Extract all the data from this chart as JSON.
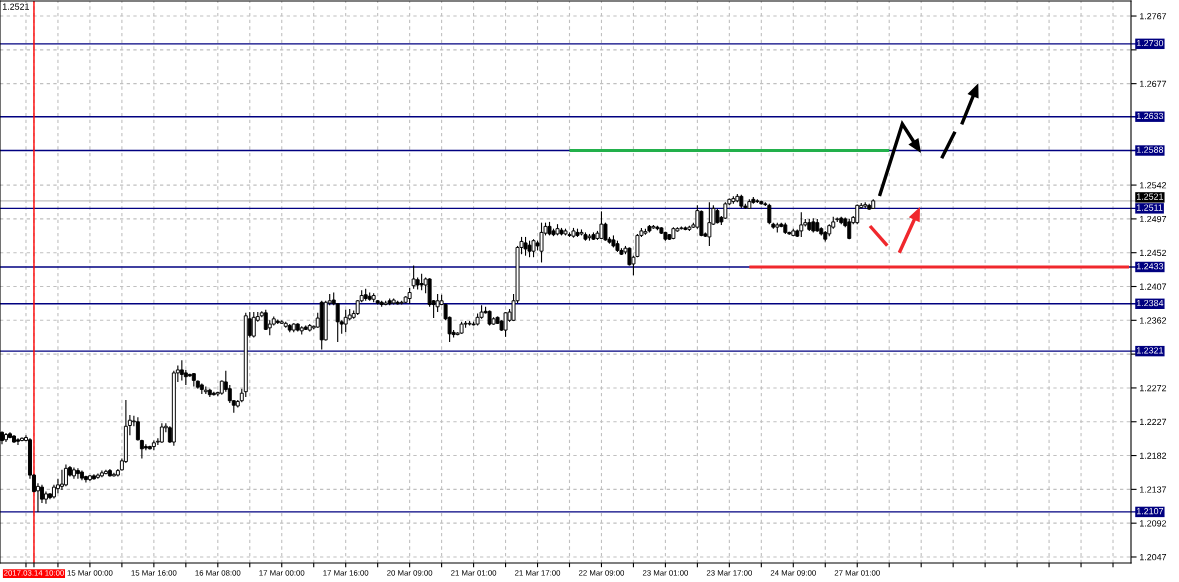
{
  "chart_data": {
    "type": "candlestick",
    "color": "#000000",
    "categories": [
      null,
      null,
      null,
      null,
      null,
      null,
      null,
      null,
      "2017.03.14 10:00",
      null,
      null,
      null,
      null,
      null,
      null,
      null,
      null,
      null,
      null,
      null,
      null,
      null,
      "15 Mar 00:00",
      null,
      null,
      null,
      null,
      null,
      null,
      null,
      null,
      null,
      null,
      null,
      null,
      null,
      null,
      null,
      "15 Mar 16:00",
      null,
      null,
      null,
      null,
      null,
      null,
      null,
      null,
      null,
      null,
      null,
      null,
      null,
      null,
      null,
      "16 Mar 08:00",
      null,
      null,
      null,
      null,
      null,
      null,
      null,
      null,
      null,
      null,
      null,
      null,
      null,
      null,
      null,
      "17 Mar 00:00",
      null,
      null,
      null,
      null,
      null,
      null,
      null,
      null,
      null,
      null,
      null,
      null,
      null,
      null,
      null,
      "17 Mar 16:00",
      null,
      null,
      null,
      null,
      null,
      null,
      null,
      null,
      null,
      null,
      null,
      null,
      null,
      null,
      null,
      "20 Mar 09:00",
      null,
      null,
      null,
      null,
      null,
      null,
      null,
      null,
      null,
      null,
      null,
      null,
      null,
      null,
      null,
      "21 Mar 01:00",
      null,
      null,
      null,
      null,
      null,
      null,
      null,
      null,
      null,
      null,
      null,
      null,
      null,
      null,
      null,
      "21 Mar 17:00",
      null,
      null,
      null,
      null,
      null,
      null,
      null,
      null,
      null,
      null,
      null,
      null,
      null,
      null,
      null,
      "22 Mar 09:00",
      null,
      null,
      null,
      null,
      null,
      null,
      null,
      null,
      null,
      null,
      null,
      null,
      null,
      null,
      null,
      "23 Mar 01:00",
      null,
      null,
      null,
      null,
      null,
      null,
      null,
      null,
      null,
      null,
      null,
      null,
      null,
      null,
      null,
      "23 Mar 17:00",
      null,
      null,
      null,
      null,
      null,
      null,
      null,
      null,
      null,
      null,
      null,
      null,
      null,
      null,
      null,
      "24 Mar 09:00",
      null,
      null,
      null,
      null,
      null,
      null,
      null,
      null,
      null,
      null,
      null,
      null,
      null,
      null,
      null,
      "27 Mar 01:00",
      null,
      null,
      null,
      null,
      null,
      null,
      null,
      null,
      null,
      null,
      null,
      null,
      null,
      null,
      null,
      null,
      null,
      null,
      null,
      null,
      null,
      null,
      null,
      null,
      null,
      null,
      null,
      null,
      null,
      null,
      null,
      null,
      null,
      null,
      null,
      null,
      null,
      null,
      null,
      null,
      null,
      null,
      null,
      null,
      null,
      null,
      null,
      null,
      null,
      null,
      null,
      null,
      null,
      null,
      null,
      null,
      null,
      null,
      null,
      null,
      null,
      null,
      null,
      null,
      null,
      null,
      null,
      null
    ],
    "ohlc": [
      [
        1.2213,
        1.2214,
        1.2197,
        1.2202
      ],
      [
        1.2203,
        1.2212,
        1.22,
        1.221
      ],
      [
        1.2211,
        1.2213,
        1.2205,
        1.2206
      ],
      [
        1.2208,
        1.2209,
        1.2199,
        1.22
      ],
      [
        1.2203,
        1.2205,
        1.2196,
        1.2201
      ],
      [
        1.2202,
        1.2206,
        1.2201,
        1.2205
      ],
      [
        1.2202,
        1.2209,
        1.2201,
        1.2206
      ],
      [
        1.2203,
        1.2205,
        1.2151,
        1.2156
      ],
      [
        1.2156,
        1.2157,
        1.2133,
        1.2134
      ],
      [
        1.2135,
        1.2145,
        1.2107,
        1.2141
      ],
      [
        1.214,
        1.2143,
        1.2119,
        1.2124
      ],
      [
        1.2124,
        1.2134,
        1.2118,
        1.2131
      ],
      [
        1.2131,
        1.2132,
        1.2124,
        1.2126
      ],
      [
        1.2127,
        1.2143,
        1.2125,
        1.214
      ],
      [
        1.2138,
        1.2151,
        1.2132,
        1.2143
      ],
      [
        1.2141,
        1.2163,
        1.2136,
        1.2144
      ],
      [
        1.2143,
        1.217,
        1.2141,
        1.2165
      ],
      [
        1.2166,
        1.2168,
        1.2154,
        1.2156
      ],
      [
        1.2155,
        1.2166,
        1.2151,
        1.2163
      ],
      [
        1.2162,
        1.2165,
        1.2151,
        1.2158
      ],
      [
        1.216,
        1.2162,
        1.2149,
        1.2152
      ],
      [
        1.2154,
        1.2155,
        1.2146,
        1.215
      ],
      [
        1.215,
        1.2156,
        1.2148,
        1.2155
      ],
      [
        1.2155,
        1.2157,
        1.215,
        1.2151
      ],
      [
        1.2153,
        1.2158,
        1.2151,
        1.2156
      ],
      [
        1.2155,
        1.2162,
        1.2153,
        1.2159
      ],
      [
        1.2158,
        1.2163,
        1.2157,
        1.2161
      ],
      [
        1.2162,
        1.2164,
        1.2154,
        1.2155
      ],
      [
        1.2155,
        1.2159,
        1.2154,
        1.2157
      ],
      [
        1.2156,
        1.2164,
        1.2154,
        1.2162
      ],
      [
        1.2163,
        1.2178,
        1.2162,
        1.2175
      ],
      [
        1.2174,
        1.2256,
        1.2172,
        1.2221
      ],
      [
        1.2222,
        1.2236,
        1.2209,
        1.2229
      ],
      [
        1.2227,
        1.2235,
        1.2221,
        1.2228
      ],
      [
        1.2227,
        1.2233,
        1.2202,
        1.2203
      ],
      [
        1.2202,
        1.2203,
        1.2178,
        1.2191
      ],
      [
        1.2194,
        1.2197,
        1.2189,
        1.2192
      ],
      [
        1.2194,
        1.2195,
        1.219,
        1.2191
      ],
      [
        1.2194,
        1.2202,
        1.2189,
        1.2199
      ],
      [
        1.22,
        1.2205,
        1.2196,
        1.2201
      ],
      [
        1.22,
        1.2225,
        1.2199,
        1.222
      ],
      [
        1.2219,
        1.2225,
        1.2213,
        1.2221
      ],
      [
        1.2219,
        1.2221,
        1.2199,
        1.22
      ],
      [
        1.22,
        1.2295,
        1.2195,
        1.2292
      ],
      [
        1.2292,
        1.2302,
        1.228,
        1.2296
      ],
      [
        1.2296,
        1.2309,
        1.2282,
        1.229
      ],
      [
        1.2292,
        1.2296,
        1.2276,
        1.2287
      ],
      [
        1.229,
        1.2291,
        1.2287,
        1.2288
      ],
      [
        1.2291,
        1.2292,
        1.2274,
        1.2282
      ],
      [
        1.2281,
        1.2282,
        1.2271,
        1.2273
      ],
      [
        1.2276,
        1.2278,
        1.2264,
        1.227
      ],
      [
        1.2267,
        1.2274,
        1.2264,
        1.2269
      ],
      [
        1.2269,
        1.2271,
        1.226,
        1.2263
      ],
      [
        1.2265,
        1.2267,
        1.2262,
        1.2263
      ],
      [
        1.2264,
        1.2267,
        1.2261,
        1.2266
      ],
      [
        1.2265,
        1.2282,
        1.2263,
        1.2281
      ],
      [
        1.228,
        1.2295,
        1.2267,
        1.227
      ],
      [
        1.2271,
        1.2276,
        1.2252,
        1.2255
      ],
      [
        1.2255,
        1.2256,
        1.2239,
        1.2249
      ],
      [
        1.2248,
        1.2256,
        1.2246,
        1.2254
      ],
      [
        1.2255,
        1.2271,
        1.2253,
        1.2265
      ],
      [
        1.2267,
        1.2372,
        1.226,
        1.2368
      ],
      [
        1.2364,
        1.2373,
        1.2339,
        1.2342
      ],
      [
        1.2341,
        1.2373,
        1.2339,
        1.2366
      ],
      [
        1.2362,
        1.2373,
        1.236,
        1.2367
      ],
      [
        1.2368,
        1.2374,
        1.2366,
        1.2372
      ],
      [
        1.2372,
        1.2376,
        1.2349,
        1.235
      ],
      [
        1.2352,
        1.2362,
        1.2342,
        1.2357
      ],
      [
        1.2357,
        1.2367,
        1.2355,
        1.2364
      ],
      [
        1.2361,
        1.2363,
        1.2357,
        1.2359
      ],
      [
        1.2358,
        1.2362,
        1.2357,
        1.236
      ],
      [
        1.2354,
        1.236,
        1.2352,
        1.2358
      ],
      [
        1.2355,
        1.2357,
        1.2346,
        1.2349
      ],
      [
        1.2349,
        1.2358,
        1.2346,
        1.2357
      ],
      [
        1.2357,
        1.2358,
        1.2347,
        1.2349
      ],
      [
        1.2348,
        1.2354,
        1.2343,
        1.2352
      ],
      [
        1.2353,
        1.2355,
        1.2349,
        1.235
      ],
      [
        1.2349,
        1.2357,
        1.2347,
        1.2355
      ],
      [
        1.2352,
        1.2355,
        1.235,
        1.2354
      ],
      [
        1.2353,
        1.2372,
        1.2352,
        1.2365
      ],
      [
        1.2386,
        1.2388,
        1.2323,
        1.2336
      ],
      [
        1.2336,
        1.2388,
        1.2335,
        1.2386
      ],
      [
        1.2385,
        1.2397,
        1.2382,
        1.2388
      ],
      [
        1.2389,
        1.2399,
        1.2382,
        1.2384
      ],
      [
        1.2384,
        1.2385,
        1.2333,
        1.236
      ],
      [
        1.236,
        1.2362,
        1.2344,
        1.2357
      ],
      [
        1.2357,
        1.2376,
        1.2346,
        1.2366
      ],
      [
        1.2364,
        1.2377,
        1.2362,
        1.2369
      ],
      [
        1.2366,
        1.2375,
        1.2364,
        1.2371
      ],
      [
        1.2371,
        1.2389,
        1.2369,
        1.2388
      ],
      [
        1.2388,
        1.2402,
        1.2386,
        1.2395
      ],
      [
        1.2396,
        1.2404,
        1.2388,
        1.2391
      ],
      [
        1.2394,
        1.2399,
        1.2388,
        1.239
      ],
      [
        1.239,
        1.2398,
        1.2386,
        1.2395
      ],
      [
        1.2388,
        1.2389,
        1.2383,
        1.2385
      ],
      [
        1.2386,
        1.2388,
        1.238,
        1.2383
      ],
      [
        1.2383,
        1.2388,
        1.2382,
        1.2385
      ],
      [
        1.2388,
        1.2391,
        1.2382,
        1.2384
      ],
      [
        1.2385,
        1.2391,
        1.2383,
        1.2389
      ],
      [
        1.2386,
        1.2388,
        1.2383,
        1.2384
      ],
      [
        1.2385,
        1.2388,
        1.2383,
        1.2386
      ],
      [
        1.2386,
        1.2394,
        1.2385,
        1.2393
      ],
      [
        1.2391,
        1.2405,
        1.2384,
        1.2399
      ],
      [
        1.2408,
        1.2435,
        1.2404,
        1.2417
      ],
      [
        1.2416,
        1.2419,
        1.2403,
        1.2409
      ],
      [
        1.2411,
        1.2424,
        1.2402,
        1.2409
      ],
      [
        1.2409,
        1.2419,
        1.2398,
        1.2417
      ],
      [
        1.2417,
        1.2418,
        1.238,
        1.2383
      ],
      [
        1.2388,
        1.2389,
        1.2365,
        1.2383
      ],
      [
        1.238,
        1.2397,
        1.2373,
        1.2388
      ],
      [
        1.2383,
        1.2396,
        1.2382,
        1.2388
      ],
      [
        1.2383,
        1.2384,
        1.2362,
        1.2364
      ],
      [
        1.2366,
        1.2367,
        1.2333,
        1.2344
      ],
      [
        1.2346,
        1.2349,
        1.2339,
        1.2343
      ],
      [
        1.2343,
        1.2346,
        1.2342,
        1.2345
      ],
      [
        1.2345,
        1.236,
        1.2344,
        1.2357
      ],
      [
        1.2357,
        1.2361,
        1.2352,
        1.2358
      ],
      [
        1.2357,
        1.2361,
        1.2355,
        1.2358
      ],
      [
        1.2357,
        1.236,
        1.2355,
        1.2356
      ],
      [
        1.2357,
        1.2371,
        1.2355,
        1.2366
      ],
      [
        1.2366,
        1.2382,
        1.2364,
        1.2373
      ],
      [
        1.2374,
        1.238,
        1.2371,
        1.2372
      ],
      [
        1.2374,
        1.2375,
        1.2355,
        1.2357
      ],
      [
        1.2357,
        1.2366,
        1.2356,
        1.2364
      ],
      [
        1.2366,
        1.2367,
        1.2357,
        1.2358
      ],
      [
        1.2361,
        1.2362,
        1.2348,
        1.2349
      ],
      [
        1.2349,
        1.2373,
        1.234,
        1.2372
      ],
      [
        1.2362,
        1.2377,
        1.236,
        1.2373
      ],
      [
        1.2362,
        1.2397,
        1.2361,
        1.2388
      ],
      [
        1.2388,
        1.2461,
        1.2385,
        1.2459
      ],
      [
        1.2459,
        1.2473,
        1.245,
        1.2467
      ],
      [
        1.2465,
        1.2473,
        1.2448,
        1.2457
      ],
      [
        1.2462,
        1.2468,
        1.2446,
        1.2454
      ],
      [
        1.2454,
        1.247,
        1.2446,
        1.2468
      ],
      [
        1.2465,
        1.2468,
        1.2455,
        1.2461
      ],
      [
        1.2454,
        1.2492,
        1.2439,
        1.2479
      ],
      [
        1.2478,
        1.2492,
        1.2475,
        1.2487
      ],
      [
        1.2487,
        1.2493,
        1.2475,
        1.2477
      ],
      [
        1.2481,
        1.2484,
        1.2474,
        1.2476
      ],
      [
        1.2477,
        1.249,
        1.2475,
        1.2484
      ],
      [
        1.2482,
        1.2485,
        1.2475,
        1.2477
      ],
      [
        1.2477,
        1.2484,
        1.2475,
        1.2481
      ],
      [
        1.2476,
        1.2479,
        1.2473,
        1.2475
      ],
      [
        1.2474,
        1.2485,
        1.2472,
        1.2481
      ],
      [
        1.2479,
        1.2484,
        1.2473,
        1.2475
      ],
      [
        1.2477,
        1.2483,
        1.2475,
        1.2479
      ],
      [
        1.2476,
        1.2479,
        1.2468,
        1.247
      ],
      [
        1.2472,
        1.2477,
        1.2468,
        1.2474
      ],
      [
        1.2476,
        1.2479,
        1.2469,
        1.247
      ],
      [
        1.2471,
        1.2481,
        1.2469,
        1.2478
      ],
      [
        1.2471,
        1.2507,
        1.247,
        1.249
      ],
      [
        1.249,
        1.2492,
        1.2468,
        1.2469
      ],
      [
        1.247,
        1.2473,
        1.2464,
        1.2466
      ],
      [
        1.2469,
        1.2475,
        1.2459,
        1.2461
      ],
      [
        1.2464,
        1.2468,
        1.2453,
        1.2455
      ],
      [
        1.2455,
        1.2458,
        1.2449,
        1.245
      ],
      [
        1.2453,
        1.2461,
        1.245,
        1.2458
      ],
      [
        1.2458,
        1.2459,
        1.2435,
        1.2436
      ],
      [
        1.2437,
        1.2448,
        1.2422,
        1.2446
      ],
      [
        1.2447,
        1.2477,
        1.2446,
        1.2475
      ],
      [
        1.2475,
        1.2485,
        1.2473,
        1.2481
      ],
      [
        1.2478,
        1.2484,
        1.2476,
        1.248
      ],
      [
        1.2487,
        1.2489,
        1.2479,
        1.2481
      ],
      [
        1.2485,
        1.2489,
        1.2484,
        1.2487
      ],
      [
        1.2486,
        1.2488,
        1.2482,
        1.2484
      ],
      [
        1.2485,
        1.2486,
        1.2477,
        1.2478
      ],
      [
        1.2479,
        1.248,
        1.2468,
        1.247
      ],
      [
        1.2476,
        1.2477,
        1.2469,
        1.247
      ],
      [
        1.2471,
        1.2486,
        1.247,
        1.2484
      ],
      [
        1.2481,
        1.2486,
        1.248,
        1.2484
      ],
      [
        1.2484,
        1.2487,
        1.2483,
        1.2485
      ],
      [
        1.2485,
        1.2487,
        1.2482,
        1.2483
      ],
      [
        1.2483,
        1.2488,
        1.2481,
        1.2486
      ],
      [
        1.2486,
        1.2492,
        1.2485,
        1.2489
      ],
      [
        1.2486,
        1.2515,
        1.2484,
        1.2508
      ],
      [
        1.2507,
        1.2508,
        1.2474,
        1.2475
      ],
      [
        1.2477,
        1.2479,
        1.2473,
        1.2474
      ],
      [
        1.2473,
        1.2519,
        1.2461,
        1.2492
      ],
      [
        1.249,
        1.2515,
        1.2489,
        1.2511
      ],
      [
        1.2508,
        1.251,
        1.2491,
        1.2492
      ],
      [
        1.2499,
        1.2501,
        1.2489,
        1.2493
      ],
      [
        1.2498,
        1.2519,
        1.2497,
        1.2517
      ],
      [
        1.2517,
        1.2524,
        1.2515,
        1.2523
      ],
      [
        1.252,
        1.2527,
        1.2517,
        1.2524
      ],
      [
        1.2521,
        1.253,
        1.2519,
        1.2527
      ],
      [
        1.2527,
        1.2529,
        1.2511,
        1.2514
      ],
      [
        1.2514,
        1.2517,
        1.251,
        1.2512
      ],
      [
        1.2511,
        1.2523,
        1.251,
        1.252
      ],
      [
        1.2523,
        1.2526,
        1.2517,
        1.2519
      ],
      [
        1.2521,
        1.2523,
        1.2518,
        1.252
      ],
      [
        1.252,
        1.2521,
        1.2516,
        1.2517
      ],
      [
        1.2517,
        1.2519,
        1.2514,
        1.2516
      ],
      [
        1.2515,
        1.2517,
        1.249,
        1.2492
      ],
      [
        1.249,
        1.2492,
        1.2484,
        1.2486
      ],
      [
        1.2486,
        1.2492,
        1.2479,
        1.2489
      ],
      [
        1.249,
        1.2492,
        1.2486,
        1.2487
      ],
      [
        1.2489,
        1.2492,
        1.2477,
        1.2479
      ],
      [
        1.2479,
        1.248,
        1.2476,
        1.2477
      ],
      [
        1.2475,
        1.2484,
        1.2474,
        1.2481
      ],
      [
        1.2481,
        1.2483,
        1.2473,
        1.2474
      ],
      [
        1.2481,
        1.2506,
        1.2473,
        1.2489
      ],
      [
        1.2489,
        1.2497,
        1.2487,
        1.2492
      ],
      [
        1.2492,
        1.2497,
        1.2481,
        1.2483
      ],
      [
        1.2493,
        1.2498,
        1.2479,
        1.2481
      ],
      [
        1.2492,
        1.2497,
        1.248,
        1.2481
      ],
      [
        1.2484,
        1.2486,
        1.2475,
        1.2477
      ],
      [
        1.2479,
        1.2481,
        1.2467,
        1.247
      ],
      [
        1.2477,
        1.249,
        1.2474,
        1.2488
      ],
      [
        1.2486,
        1.25,
        1.2484,
        1.2493
      ],
      [
        1.2496,
        1.2499,
        1.2493,
        1.2497
      ],
      [
        1.2498,
        1.25,
        1.249,
        1.2492
      ],
      [
        1.2497,
        1.2499,
        1.2486,
        1.2488
      ],
      [
        1.2493,
        1.2497,
        1.247,
        1.2471
      ],
      [
        1.2492,
        1.2501,
        1.249,
        1.2499
      ],
      [
        1.2492,
        1.2516,
        1.249,
        1.2515
      ],
      [
        1.2512,
        1.2518,
        1.2511,
        1.2515
      ],
      [
        1.2514,
        1.2519,
        1.2511,
        1.2516
      ],
      [
        1.2515,
        1.2517,
        1.2509,
        1.251
      ],
      [
        1.2511,
        1.2523,
        1.251,
        1.2521
      ],
      null,
      null,
      null,
      null,
      null,
      null,
      null,
      null,
      null,
      null,
      null,
      null,
      null,
      null,
      null,
      null,
      null,
      null,
      null,
      null,
      null,
      null,
      null,
      null,
      null,
      null,
      null,
      null,
      null,
      null,
      null,
      null,
      null,
      null,
      null,
      null,
      null,
      null,
      null,
      null,
      null,
      null,
      null,
      null,
      null,
      null,
      null,
      null,
      null,
      null,
      null,
      null,
      null,
      null,
      null,
      null,
      null,
      null,
      null,
      null,
      null,
      null,
      null,
      null
    ],
    "series": [
      {
        "type": "line",
        "color": "#22b04b",
        "values": [
          null,
          null,
          null,
          null,
          null,
          null,
          null,
          null,
          null,
          null,
          null,
          null,
          null,
          null,
          null,
          null,
          null,
          null,
          null,
          null,
          null,
          null,
          null,
          null,
          null,
          null,
          null,
          null,
          null,
          null,
          null,
          null,
          null,
          null,
          null,
          null,
          null,
          null,
          null,
          null,
          null,
          null,
          null,
          null,
          null,
          null,
          null,
          null,
          null,
          null,
          null,
          null,
          null,
          null,
          null,
          null,
          null,
          null,
          null,
          null,
          null,
          null,
          null,
          null,
          null,
          null,
          null,
          null,
          null,
          null,
          null,
          null,
          null,
          null,
          null,
          null,
          null,
          null,
          null,
          null,
          null,
          null,
          null,
          null,
          null,
          null,
          null,
          null,
          null,
          null,
          null,
          null,
          null,
          null,
          null,
          null,
          null,
          null,
          null,
          null,
          null,
          null,
          null,
          null,
          null,
          null,
          null,
          null,
          null,
          null,
          null,
          null,
          null,
          null,
          null,
          null,
          null,
          null,
          null,
          null,
          null,
          null,
          null,
          null,
          null,
          null,
          null,
          null,
          null,
          null,
          null,
          null,
          null,
          null,
          null,
          null,
          null,
          null,
          null,
          null,
          null,
          null,
          1.2588,
          1.2588,
          1.2588,
          1.2588,
          1.2588,
          1.2588,
          1.2588,
          1.2588,
          1.2588,
          1.2588,
          1.2588,
          1.2588,
          1.2588,
          1.2588,
          1.2588,
          1.2588,
          1.2588,
          1.2588,
          1.2588,
          1.2588,
          1.2588,
          1.2588,
          1.2588,
          1.2588,
          1.2588,
          1.2588,
          1.2588,
          1.2588,
          1.2588,
          1.2588,
          1.2588,
          1.2588,
          1.2588,
          1.2588,
          1.2588,
          1.2588,
          1.2588,
          1.2588,
          1.2588,
          1.2588,
          1.2588,
          1.2588,
          1.2588,
          1.2588,
          1.2588,
          1.2588,
          1.2588,
          1.2588,
          1.2588,
          1.2588,
          1.2588,
          1.2588,
          1.2588,
          1.2588,
          1.2588,
          1.2588,
          1.2588,
          1.2588,
          1.2588,
          1.2588,
          1.2588,
          1.2588,
          1.2588,
          1.2588,
          1.2588,
          1.2588,
          1.2588,
          1.2588,
          1.2588,
          1.2588,
          1.2588,
          1.2588,
          1.2588,
          1.2588,
          1.2588,
          1.2588,
          1.2588,
          1.2588,
          1.2588,
          1.2588,
          1.2588,
          null,
          null,
          null,
          null,
          null,
          null,
          null,
          null,
          null,
          null,
          null,
          null,
          null,
          null,
          null,
          null,
          null,
          null,
          null,
          null,
          null,
          null,
          null,
          null,
          null,
          null,
          null,
          null,
          null,
          null,
          null,
          null,
          null,
          null,
          null,
          null,
          null,
          null,
          null,
          null,
          null,
          null,
          null,
          null,
          null,
          null,
          null,
          null,
          null,
          null,
          null,
          null,
          null,
          null,
          null,
          null,
          null,
          null,
          null,
          null
        ]
      },
      {
        "type": "line",
        "color": "#f0282d",
        "values": [
          null,
          null,
          null,
          null,
          null,
          null,
          null,
          null,
          null,
          null,
          null,
          null,
          null,
          null,
          null,
          null,
          null,
          null,
          null,
          null,
          null,
          null,
          null,
          null,
          null,
          null,
          null,
          null,
          null,
          null,
          null,
          null,
          null,
          null,
          null,
          null,
          null,
          null,
          null,
          null,
          null,
          null,
          null,
          null,
          null,
          null,
          null,
          null,
          null,
          null,
          null,
          null,
          null,
          null,
          null,
          null,
          null,
          null,
          null,
          null,
          null,
          null,
          null,
          null,
          null,
          null,
          null,
          null,
          null,
          null,
          null,
          null,
          null,
          null,
          null,
          null,
          null,
          null,
          null,
          null,
          null,
          null,
          null,
          null,
          null,
          null,
          null,
          null,
          null,
          null,
          null,
          null,
          null,
          null,
          null,
          null,
          null,
          null,
          null,
          null,
          null,
          null,
          null,
          null,
          null,
          null,
          null,
          null,
          null,
          null,
          null,
          null,
          null,
          null,
          null,
          null,
          null,
          null,
          null,
          null,
          null,
          null,
          null,
          null,
          null,
          null,
          null,
          null,
          null,
          null,
          null,
          null,
          null,
          null,
          null,
          null,
          null,
          null,
          null,
          null,
          null,
          null,
          null,
          null,
          null,
          null,
          null,
          null,
          null,
          null,
          null,
          null,
          null,
          null,
          null,
          null,
          null,
          null,
          null,
          null,
          null,
          null,
          null,
          null,
          null,
          null,
          null,
          null,
          null,
          null,
          null,
          null,
          null,
          null,
          null,
          null,
          null,
          null,
          null,
          null,
          null,
          null,
          null,
          null,
          null,
          null,
          null,
          1.2433,
          1.2433,
          1.2433,
          1.2433,
          1.2433,
          1.2433,
          1.2433,
          1.2433,
          1.2433,
          1.2433,
          1.2433,
          1.2433,
          1.2433,
          1.2433,
          1.2433,
          1.2433,
          1.2433,
          1.2433,
          1.2433,
          1.2433,
          1.2433,
          1.2433,
          1.2433,
          1.2433,
          1.2433,
          1.2433,
          1.2433,
          1.2433,
          1.2433,
          1.2433,
          1.2433,
          1.2433,
          1.2433,
          1.2433,
          1.2433,
          1.2433,
          1.2433,
          1.2433,
          1.2433,
          1.2433,
          1.2433,
          1.2433,
          1.2433,
          1.2433,
          1.2433,
          1.2433,
          1.2433,
          1.2433,
          1.2433,
          1.2433,
          1.2433,
          1.2433,
          1.2433,
          1.2433,
          1.2433,
          1.2433,
          1.2433,
          1.2433,
          1.2433,
          1.2433,
          1.2433,
          1.2433,
          1.2433,
          1.2433,
          1.2433,
          1.2433,
          1.2433,
          1.2433,
          1.2433,
          1.2433,
          1.2433,
          1.2433,
          1.2433,
          1.2433,
          1.2433,
          1.2433,
          1.2433,
          1.2433,
          1.2433,
          1.2433,
          1.2433,
          1.2433,
          1.2433,
          1.2433,
          1.2433,
          1.2433,
          1.2433,
          1.2433,
          1.2433,
          1.2433,
          1.2433,
          1.2433,
          1.2433,
          1.2433,
          1.2433,
          1.2433
        ]
      }
    ],
    "ylim": [
      1.2039,
      1.2787
    ],
    "yticks": [
      1.2047,
      1.2092,
      1.2137,
      1.2182,
      1.2227,
      1.2272,
      {
        "value": 1.2317,
        "label": null
      },
      1.2362,
      1.2407,
      1.2452,
      1.2497,
      1.2542,
      1.2677,
      {
        "value": 1.2722,
        "label": null
      },
      1.2767
    ],
    "ref_lines": [
      {
        "axis": "y",
        "value": 1.273,
        "label": "1.2730",
        "color": "#000080"
      },
      {
        "axis": "y",
        "value": 1.2633,
        "label": "1.2633",
        "color": "#000080"
      },
      {
        "axis": "y",
        "value": 1.2588,
        "label": "1.2588",
        "color": "#000080"
      },
      {
        "axis": "y",
        "value": 1.2521,
        "label": "1.2521",
        "color": "#c0c0c0"
      },
      {
        "axis": "y",
        "value": 1.2511,
        "label": "1.2511",
        "color": "#000080"
      },
      {
        "axis": "y",
        "value": 1.2433,
        "label": "1.2433",
        "color": "#000080"
      },
      {
        "axis": "y",
        "value": 1.2384,
        "label": "1.2384",
        "color": "#000080"
      },
      {
        "axis": "y",
        "value": 1.2321,
        "label": "1.2321",
        "color": "#000080"
      },
      {
        "axis": "y",
        "value": 1.2107,
        "label": "1.2107",
        "color": "#000080"
      },
      {
        "axis": "x",
        "value": "2017.03.14 10:00",
        "color": "#ff0000"
      }
    ],
    "annotations": [
      "1.2521"
    ],
    "grid": true
  }
}
